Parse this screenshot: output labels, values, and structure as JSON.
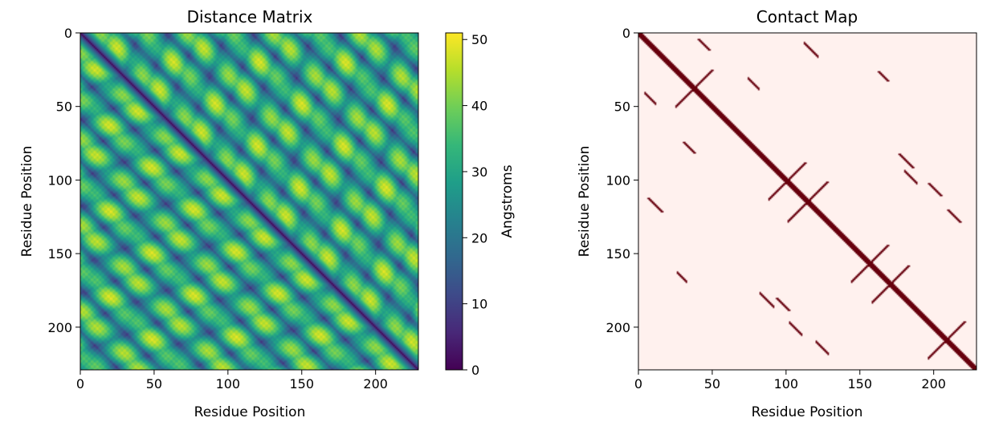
{
  "chart_data": [
    {
      "type": "heatmap",
      "title": "Distance Matrix",
      "xlabel": "Residue Position",
      "ylabel": "Residue Position",
      "n_residues": 229,
      "xlim": [
        0,
        229
      ],
      "ylim": [
        229,
        0
      ],
      "x_ticks": [
        0,
        50,
        100,
        150,
        200
      ],
      "y_ticks": [
        0,
        50,
        100,
        150,
        200
      ],
      "colormap": "viridis",
      "colorbar": {
        "label": "Angstroms",
        "range": [
          0,
          51
        ],
        "ticks": [
          0,
          10,
          20,
          30,
          40,
          50
        ],
        "colors": [
          "#440154",
          "#482878",
          "#3e4a89",
          "#31688e",
          "#26828e",
          "#1f9e89",
          "#35b779",
          "#6ece58",
          "#b5de2b",
          "#fde725"
        ]
      },
      "features": {
        "diagonal_min_distance": 0,
        "max_distance": 51
      }
    },
    {
      "type": "heatmap",
      "title": "Contact Map",
      "xlabel": "Residue Position",
      "ylabel": "Residue Position",
      "n_residues": 229,
      "xlim": [
        0,
        229
      ],
      "ylim": [
        229,
        0
      ],
      "x_ticks": [
        0,
        50,
        100,
        150,
        200
      ],
      "y_ticks": [
        0,
        50,
        100,
        150,
        200
      ],
      "colors": {
        "background": "#fff1ee",
        "contact": "#67000d"
      },
      "anti_diagonal_contacts": [
        {
          "center": 37,
          "half_span": 12
        },
        {
          "center": 100,
          "half_span": 12
        },
        {
          "center": 114,
          "half_span": 13
        },
        {
          "center": 156,
          "half_span": 12
        },
        {
          "center": 170,
          "half_span": 12
        },
        {
          "center": 208,
          "half_span": 12
        }
      ],
      "parallel_contacts": [
        {
          "i_start": 6,
          "j_start": 112,
          "length": 10
        },
        {
          "i_start": 176,
          "j_start": 82,
          "length": 10
        },
        {
          "i_start": 209,
          "j_start": 120,
          "length": 9
        },
        {
          "i_start": 93,
          "j_start": 180,
          "length": 9
        },
        {
          "i_start": 162,
          "j_start": 26,
          "length": 7
        },
        {
          "i_start": 196,
          "j_start": 102,
          "length": 9
        },
        {
          "i_start": 30,
          "j_start": 74,
          "length": 8
        },
        {
          "i_start": 40,
          "j_start": 4,
          "length": 8
        }
      ]
    }
  ]
}
